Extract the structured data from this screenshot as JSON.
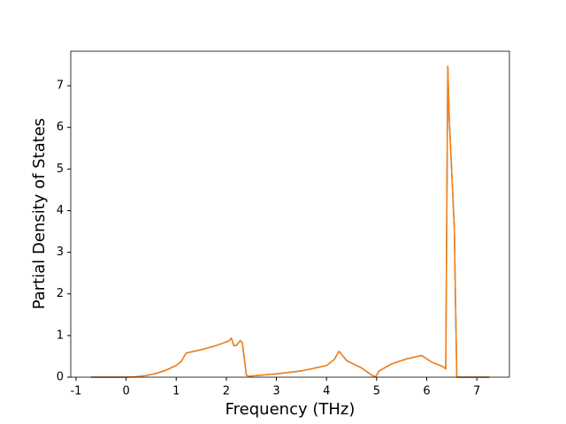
{
  "chart_data": {
    "type": "line",
    "xlabel": "Frequency (THz)",
    "ylabel": "Partial Density of States",
    "x": [
      -0.7,
      0,
      0.2,
      0.4,
      0.6,
      0.8,
      1.0,
      1.1,
      1.2,
      1.5,
      1.8,
      2.05,
      2.1,
      2.15,
      2.2,
      2.28,
      2.32,
      2.4,
      2.45,
      2.6,
      3.0,
      3.5,
      4.0,
      4.15,
      4.25,
      4.3,
      4.4,
      4.7,
      4.9,
      4.98,
      5.05,
      5.3,
      5.6,
      5.9,
      5.95,
      6.1,
      6.3,
      6.38,
      6.42,
      6.45,
      6.55,
      6.6,
      7.25
    ],
    "series": [
      {
        "color": "#1f77b4",
        "values": [
          0,
          0,
          0.01,
          0.04,
          0.09,
          0.17,
          0.28,
          0.38,
          0.58,
          0.66,
          0.76,
          0.87,
          0.94,
          0.76,
          0.76,
          0.88,
          0.82,
          0.05,
          0.02,
          0.04,
          0.08,
          0.15,
          0.28,
          0.42,
          0.62,
          0.55,
          0.4,
          0.22,
          0.05,
          0.01,
          0.15,
          0.32,
          0.44,
          0.52,
          0.48,
          0.36,
          0.27,
          0.2,
          7.47,
          6.2,
          3.6,
          0,
          0
        ]
      },
      {
        "color": "#ff7f0e",
        "values": [
          0,
          0,
          0.01,
          0.04,
          0.09,
          0.17,
          0.28,
          0.38,
          0.58,
          0.66,
          0.76,
          0.87,
          0.94,
          0.76,
          0.76,
          0.88,
          0.82,
          0.05,
          0.02,
          0.04,
          0.08,
          0.15,
          0.28,
          0.42,
          0.62,
          0.55,
          0.4,
          0.22,
          0.05,
          0.01,
          0.15,
          0.32,
          0.44,
          0.52,
          0.48,
          0.36,
          0.27,
          0.2,
          7.47,
          6.2,
          3.6,
          0,
          0
        ]
      }
    ],
    "xlim": [
      -1.105,
      7.65
    ],
    "xticks": [
      -1,
      0,
      1,
      2,
      3,
      4,
      5,
      6,
      7
    ],
    "ylim": [
      0,
      7.83
    ],
    "yticks": [
      0,
      1,
      2,
      3,
      4,
      5,
      6,
      7
    ]
  }
}
